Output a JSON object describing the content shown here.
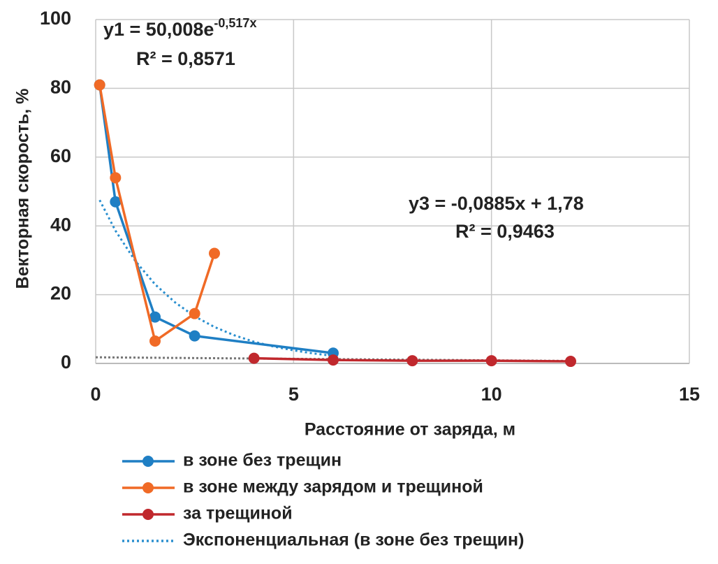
{
  "chart_data": {
    "type": "line",
    "xlabel": "Расстояние от заряда, м",
    "ylabel": "Векторная скорость,  %",
    "xlim": [
      0,
      15
    ],
    "xticks": [
      0,
      5,
      10,
      15
    ],
    "ylim": [
      0,
      100
    ],
    "yticks": [
      0,
      20,
      40,
      60,
      80,
      100
    ],
    "grid": true,
    "legend": "bottom",
    "series": [
      {
        "name": "в зоне без трещин",
        "color": "#1f7fc4",
        "style": "solid",
        "marker": true,
        "x": [
          0.1,
          0.5,
          1.5,
          2.5,
          6
        ],
        "values": [
          81,
          47,
          13.5,
          8,
          3
        ]
      },
      {
        "name": "в зоне между зарядом и трещиной",
        "color": "#f06a26",
        "style": "solid",
        "marker": true,
        "x": [
          0.1,
          0.5,
          1.5,
          2.5,
          3
        ],
        "values": [
          81,
          54,
          6.5,
          14.5,
          32
        ]
      },
      {
        "name": "за трещиной",
        "color": "#c0282d",
        "style": "solid",
        "marker": true,
        "x": [
          4,
          6,
          8,
          10,
          12
        ],
        "values": [
          1.5,
          1,
          0.8,
          0.8,
          0.6
        ]
      },
      {
        "name": "Экспоненциальная (в зоне без трещин)",
        "color": "#2a8fcf",
        "style": "dotted",
        "marker": false,
        "x": [
          0.1,
          0.5,
          1,
          1.5,
          2,
          2.5,
          3,
          3.5,
          4,
          4.5,
          5,
          5.5,
          6
        ],
        "values": [
          47.5,
          38.6,
          29.8,
          23.0,
          17.8,
          13.7,
          10.6,
          8.2,
          6.3,
          4.9,
          3.8,
          2.9,
          2.2
        ]
      }
    ],
    "linear_trend": {
      "color": "#777777",
      "x": [
        0,
        12
      ],
      "values": [
        1.78,
        0.72
      ]
    },
    "annotations": [
      {
        "text": "y1 = 50,008e",
        "superscript": "-0,517x"
      },
      {
        "text": "R² = 0,8571"
      },
      {
        "text": "y3 = -0,0885x + 1,78"
      },
      {
        "text": "R² = 0,9463"
      }
    ]
  }
}
